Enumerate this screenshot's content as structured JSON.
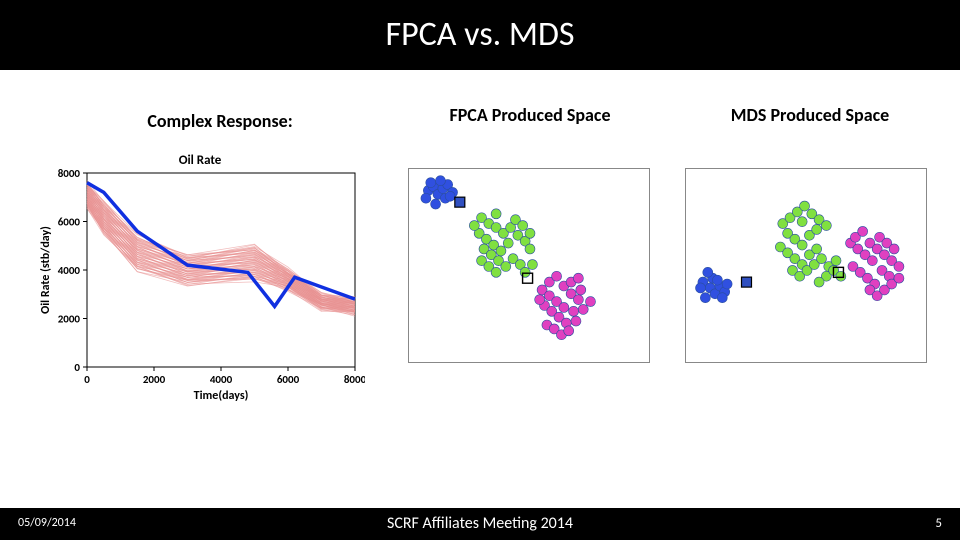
{
  "title": "FPCA vs. MDS",
  "columns": {
    "complex": "Complex Response:",
    "fpca": "FPCA Produced\nSpace",
    "mds": "MDS Produced\nSpace"
  },
  "line_chart": {
    "type": "line",
    "title": "Oil Rate",
    "xlabel": "Time(days)",
    "ylabel": "Oil Rate (stb/day)",
    "title_fontsize": 13,
    "label_fontsize": 12,
    "tick_fontsize": 11,
    "xlim": [
      0,
      8000
    ],
    "ylim": [
      0,
      8000
    ],
    "xtick_step": 2000,
    "ytick_step": 2000,
    "background_color": "#ffffff",
    "axis_color": "#000000",
    "red_bundle": {
      "color": "#e89090",
      "width": 0.8,
      "n": 60,
      "shape_x": [
        0,
        500,
        1500,
        3000,
        5000,
        6000,
        7000,
        8000
      ],
      "shape_y_lo": [
        6600,
        5500,
        4000,
        3400,
        3600,
        3200,
        2400,
        2200
      ],
      "shape_y_hi": [
        7600,
        6800,
        5400,
        4600,
        5000,
        4000,
        3000,
        2800
      ]
    },
    "blue_line": {
      "color": "#1030e0",
      "width": 3.5,
      "x": [
        0,
        500,
        1500,
        3000,
        4800,
        5600,
        6200,
        7000,
        8000
      ],
      "y": [
        7600,
        7200,
        5600,
        4200,
        3900,
        2500,
        3700,
        3300,
        2800
      ]
    }
  },
  "scatter_fpca": {
    "type": "scatter",
    "border_color": "#888888",
    "background_color": "#ffffff",
    "marker_size": 5,
    "marker_border": "#2a4ea0",
    "square_marker": {
      "size": 10,
      "fill": "#3050c0",
      "stroke": "#000000"
    },
    "square_marker_open": {
      "size": 10,
      "fill": "none",
      "stroke": "#000000"
    },
    "blue_points": [
      [
        0.08,
        0.11
      ],
      [
        0.1,
        0.09
      ],
      [
        0.12,
        0.13
      ],
      [
        0.14,
        0.1
      ],
      [
        0.16,
        0.08
      ],
      [
        0.18,
        0.12
      ],
      [
        0.07,
        0.15
      ],
      [
        0.11,
        0.18
      ],
      [
        0.15,
        0.15
      ],
      [
        0.09,
        0.07
      ],
      [
        0.13,
        0.06
      ],
      [
        0.17,
        0.14
      ]
    ],
    "blue_square": [
      0.21,
      0.17
    ],
    "green_points": [
      [
        0.3,
        0.25
      ],
      [
        0.33,
        0.28
      ],
      [
        0.36,
        0.3
      ],
      [
        0.29,
        0.33
      ],
      [
        0.32,
        0.36
      ],
      [
        0.35,
        0.39
      ],
      [
        0.38,
        0.42
      ],
      [
        0.41,
        0.38
      ],
      [
        0.31,
        0.41
      ],
      [
        0.34,
        0.44
      ],
      [
        0.37,
        0.47
      ],
      [
        0.4,
        0.5
      ],
      [
        0.43,
        0.46
      ],
      [
        0.46,
        0.49
      ],
      [
        0.39,
        0.33
      ],
      [
        0.42,
        0.3
      ],
      [
        0.45,
        0.34
      ],
      [
        0.48,
        0.37
      ],
      [
        0.5,
        0.41
      ],
      [
        0.36,
        0.23
      ],
      [
        0.27,
        0.29
      ],
      [
        0.3,
        0.47
      ],
      [
        0.33,
        0.5
      ],
      [
        0.36,
        0.53
      ],
      [
        0.48,
        0.53
      ],
      [
        0.51,
        0.49
      ],
      [
        0.44,
        0.26
      ],
      [
        0.47,
        0.29
      ],
      [
        0.5,
        0.33
      ]
    ],
    "green_square": [
      0.49,
      0.56
    ],
    "magenta_points": [
      [
        0.55,
        0.62
      ],
      [
        0.58,
        0.65
      ],
      [
        0.61,
        0.68
      ],
      [
        0.64,
        0.71
      ],
      [
        0.67,
        0.64
      ],
      [
        0.7,
        0.67
      ],
      [
        0.56,
        0.7
      ],
      [
        0.59,
        0.73
      ],
      [
        0.62,
        0.76
      ],
      [
        0.65,
        0.79
      ],
      [
        0.68,
        0.73
      ],
      [
        0.71,
        0.62
      ],
      [
        0.64,
        0.6
      ],
      [
        0.67,
        0.58
      ],
      [
        0.7,
        0.56
      ],
      [
        0.58,
        0.58
      ],
      [
        0.61,
        0.55
      ],
      [
        0.54,
        0.67
      ],
      [
        0.57,
        0.8
      ],
      [
        0.6,
        0.82
      ],
      [
        0.63,
        0.85
      ],
      [
        0.66,
        0.83
      ],
      [
        0.72,
        0.72
      ],
      [
        0.75,
        0.68
      ],
      [
        0.69,
        0.78
      ]
    ]
  },
  "scatter_mds": {
    "type": "scatter",
    "border_color": "#888888",
    "background_color": "#ffffff",
    "marker_size": 5,
    "marker_border": "#2a4ea0",
    "square_marker": {
      "size": 10,
      "fill": "#3050c0",
      "stroke": "#000000"
    },
    "square_marker_open": {
      "size": 10,
      "fill": "none",
      "stroke": "#000000"
    },
    "blue_points": [
      [
        0.07,
        0.58
      ],
      [
        0.1,
        0.61
      ],
      [
        0.12,
        0.64
      ],
      [
        0.08,
        0.66
      ],
      [
        0.14,
        0.6
      ],
      [
        0.16,
        0.63
      ],
      [
        0.11,
        0.56
      ],
      [
        0.09,
        0.53
      ],
      [
        0.06,
        0.61
      ],
      [
        0.13,
        0.57
      ],
      [
        0.15,
        0.66
      ],
      [
        0.17,
        0.59
      ]
    ],
    "blue_square": [
      0.25,
      0.58
    ],
    "green_points": [
      [
        0.4,
        0.28
      ],
      [
        0.43,
        0.25
      ],
      [
        0.46,
        0.22
      ],
      [
        0.49,
        0.19
      ],
      [
        0.52,
        0.23
      ],
      [
        0.55,
        0.26
      ],
      [
        0.58,
        0.29
      ],
      [
        0.42,
        0.33
      ],
      [
        0.45,
        0.36
      ],
      [
        0.48,
        0.39
      ],
      [
        0.51,
        0.34
      ],
      [
        0.54,
        0.31
      ],
      [
        0.39,
        0.4
      ],
      [
        0.42,
        0.43
      ],
      [
        0.45,
        0.46
      ],
      [
        0.48,
        0.49
      ],
      [
        0.51,
        0.44
      ],
      [
        0.54,
        0.41
      ],
      [
        0.44,
        0.52
      ],
      [
        0.47,
        0.55
      ],
      [
        0.5,
        0.52
      ],
      [
        0.53,
        0.49
      ],
      [
        0.56,
        0.46
      ],
      [
        0.59,
        0.5
      ],
      [
        0.62,
        0.47
      ],
      [
        0.58,
        0.55
      ],
      [
        0.61,
        0.52
      ],
      [
        0.64,
        0.55
      ],
      [
        0.55,
        0.58
      ],
      [
        0.48,
        0.27
      ]
    ],
    "green_square": [
      0.63,
      0.53
    ],
    "magenta_points": [
      [
        0.68,
        0.38
      ],
      [
        0.71,
        0.41
      ],
      [
        0.74,
        0.44
      ],
      [
        0.77,
        0.47
      ],
      [
        0.69,
        0.5
      ],
      [
        0.72,
        0.53
      ],
      [
        0.75,
        0.56
      ],
      [
        0.78,
        0.59
      ],
      [
        0.81,
        0.52
      ],
      [
        0.84,
        0.55
      ],
      [
        0.7,
        0.35
      ],
      [
        0.73,
        0.32
      ],
      [
        0.76,
        0.38
      ],
      [
        0.79,
        0.41
      ],
      [
        0.82,
        0.44
      ],
      [
        0.85,
        0.47
      ],
      [
        0.88,
        0.5
      ],
      [
        0.76,
        0.62
      ],
      [
        0.79,
        0.65
      ],
      [
        0.82,
        0.62
      ],
      [
        0.85,
        0.59
      ],
      [
        0.88,
        0.56
      ],
      [
        0.8,
        0.35
      ],
      [
        0.83,
        0.38
      ],
      [
        0.86,
        0.41
      ]
    ]
  },
  "colors": {
    "blue_dot": "#3050e0",
    "green_dot": "#80e040",
    "magenta_dot": "#e040c0"
  },
  "footer": {
    "date": "05/09/2014",
    "center": "SCRF Affiliates Meeting 2014",
    "page": "5"
  }
}
